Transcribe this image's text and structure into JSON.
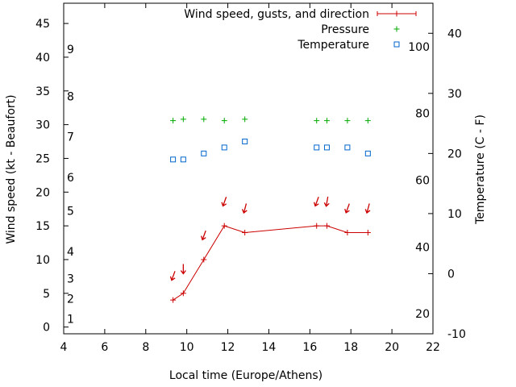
{
  "chart_data": {
    "type": "line",
    "xlabel": "Local time (Europe/Athens)",
    "ylabel": "Wind speed (kt - Beaufort)",
    "y2label": "Temperature (C - F)",
    "xlim": [
      4,
      22
    ],
    "ylim": [
      -1,
      48
    ],
    "y2lim": [
      -10,
      45
    ],
    "xticks": [
      4,
      6,
      8,
      10,
      12,
      14,
      16,
      18,
      20,
      22
    ],
    "yticks": [
      0,
      5,
      10,
      15,
      20,
      25,
      30,
      35,
      40,
      45
    ],
    "y2ticks": [
      -10,
      0,
      10,
      20,
      30,
      40
    ],
    "fahrenheit_ticks": [
      {
        "label": "20",
        "celsius": -6.67
      },
      {
        "label": "40",
        "celsius": 4.44
      },
      {
        "label": "60",
        "celsius": 15.56
      },
      {
        "label": "80",
        "celsius": 26.67
      },
      {
        "label": "100",
        "celsius": 37.78
      }
    ],
    "beaufort_ticks": [
      {
        "label": "1",
        "wind": 1.2
      },
      {
        "label": "2",
        "wind": 4.2
      },
      {
        "label": "3",
        "wind": 7.2
      },
      {
        "label": "4",
        "wind": 11.2
      },
      {
        "label": "5",
        "wind": 17.2
      },
      {
        "label": "6",
        "wind": 22.2
      },
      {
        "label": "7",
        "wind": 28.2
      },
      {
        "label": "8",
        "wind": 34.2
      },
      {
        "label": "9",
        "wind": 41.2
      }
    ],
    "legend": [
      {
        "label": "Wind speed, gusts, and direction",
        "style": "line",
        "color": "#cc0000"
      },
      {
        "label": "Pressure",
        "style": "plus",
        "color": "#00aa00"
      },
      {
        "label": "Temperature",
        "style": "square",
        "color": "#0066cc"
      }
    ],
    "series": [
      {
        "name": "Wind speed, gusts, and direction",
        "color": "#cc0000",
        "points": [
          {
            "x": 9.33,
            "y": 4
          },
          {
            "x": 9.83,
            "y": 5
          },
          {
            "x": 10.83,
            "y": 10
          },
          {
            "x": 11.83,
            "y": 15
          },
          {
            "x": 12.83,
            "y": 14
          },
          {
            "x": 16.33,
            "y": 15
          },
          {
            "x": 16.83,
            "y": 15
          },
          {
            "x": 17.83,
            "y": 14
          },
          {
            "x": 18.83,
            "y": 14
          }
        ]
      },
      {
        "name": "Pressure",
        "color": "#00aa00",
        "points": [
          {
            "x": 9.33,
            "y": 30.6
          },
          {
            "x": 9.83,
            "y": 30.8
          },
          {
            "x": 10.83,
            "y": 30.8
          },
          {
            "x": 11.83,
            "y": 30.6
          },
          {
            "x": 12.83,
            "y": 30.8
          },
          {
            "x": 16.33,
            "y": 30.6
          },
          {
            "x": 16.83,
            "y": 30.6
          },
          {
            "x": 17.83,
            "y": 30.6
          },
          {
            "x": 18.83,
            "y": 30.6
          }
        ]
      },
      {
        "name": "Temperature",
        "axis": "right",
        "color": "#0066cc",
        "points": [
          {
            "x": 9.33,
            "y": 19
          },
          {
            "x": 9.83,
            "y": 19
          },
          {
            "x": 10.83,
            "y": 20
          },
          {
            "x": 11.83,
            "y": 21
          },
          {
            "x": 12.83,
            "y": 22
          },
          {
            "x": 16.33,
            "y": 21
          },
          {
            "x": 16.83,
            "y": 21
          },
          {
            "x": 17.83,
            "y": 21
          },
          {
            "x": 18.83,
            "y": 20
          }
        ]
      }
    ],
    "wind_direction_arrows": [
      {
        "x": 9.33,
        "y": 7.5,
        "angle": 20
      },
      {
        "x": 9.83,
        "y": 8.5,
        "angle": 0
      },
      {
        "x": 10.83,
        "y": 13.5,
        "angle": 20
      },
      {
        "x": 11.83,
        "y": 18.5,
        "angle": 20
      },
      {
        "x": 12.83,
        "y": 17.5,
        "angle": 15
      },
      {
        "x": 16.33,
        "y": 18.5,
        "angle": 20
      },
      {
        "x": 16.83,
        "y": 18.5,
        "angle": 10
      },
      {
        "x": 17.83,
        "y": 17.5,
        "angle": 20
      },
      {
        "x": 18.83,
        "y": 17.5,
        "angle": 15
      }
    ]
  }
}
